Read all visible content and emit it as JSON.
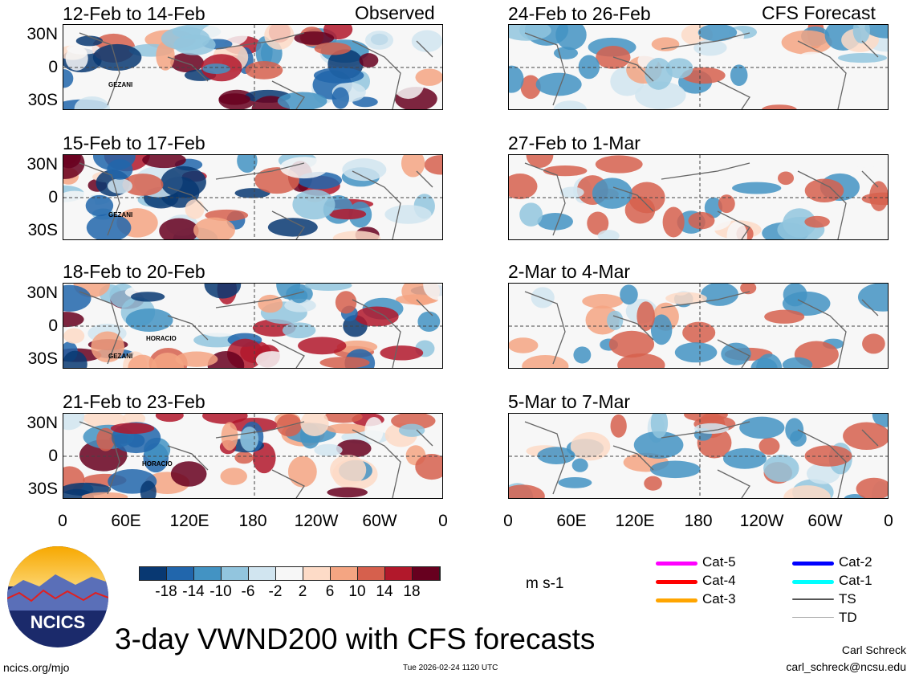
{
  "left_header": "Observed",
  "right_header": "CFS Forecast",
  "left_panels": [
    {
      "title": "12-Feb to 14-Feb",
      "storms": [
        "GEZANI"
      ]
    },
    {
      "title": "15-Feb to 17-Feb",
      "storms": [
        "GEZANI"
      ]
    },
    {
      "title": "18-Feb to 20-Feb",
      "storms": [
        "HORACIO",
        "GEZANI"
      ]
    },
    {
      "title": "21-Feb to 23-Feb",
      "storms": [
        "HORACIO"
      ]
    }
  ],
  "right_panels": [
    {
      "title": "24-Feb to 26-Feb"
    },
    {
      "title": "27-Feb to 1-Mar"
    },
    {
      "title": "2-Mar to 4-Mar"
    },
    {
      "title": "5-Mar to 7-Mar"
    }
  ],
  "lat_labels": [
    "30N",
    "0",
    "30S"
  ],
  "lon_labels": [
    "0",
    "60E",
    "120E",
    "180",
    "120W",
    "60W",
    "0"
  ],
  "colorbar": {
    "colors": [
      "#083872",
      "#2166ac",
      "#4393c3",
      "#92c5de",
      "#d1e5f0",
      "#f7f7f7",
      "#fddbc7",
      "#f4a582",
      "#d6604d",
      "#b2182b",
      "#67001f"
    ],
    "labels": [
      "-18",
      "-14",
      "-10",
      "-6",
      "-2",
      "2",
      "6",
      "10",
      "14",
      "18"
    ],
    "units": "m s-1"
  },
  "legend": [
    {
      "label": "Cat-5",
      "color": "#ff00ff"
    },
    {
      "label": "Cat-4",
      "color": "#ff0000"
    },
    {
      "label": "Cat-3",
      "color": "#ffa500"
    },
    {
      "label": "Cat-2",
      "color": "#0000ff"
    },
    {
      "label": "Cat-1",
      "color": "#00ffff"
    },
    {
      "label": "TS",
      "color": "#555555"
    },
    {
      "label": "TD",
      "color": "#aaaaaa"
    }
  ],
  "logo_text": "NCICS",
  "main_title": "3-day VWND200 with CFS forecasts",
  "footer_url": "ncics.org/mjo",
  "timestamp": "Tue 2026-02-24 1120 UTC",
  "author": "Carl Schreck",
  "email": "carl_schreck@ncsu.edu"
}
